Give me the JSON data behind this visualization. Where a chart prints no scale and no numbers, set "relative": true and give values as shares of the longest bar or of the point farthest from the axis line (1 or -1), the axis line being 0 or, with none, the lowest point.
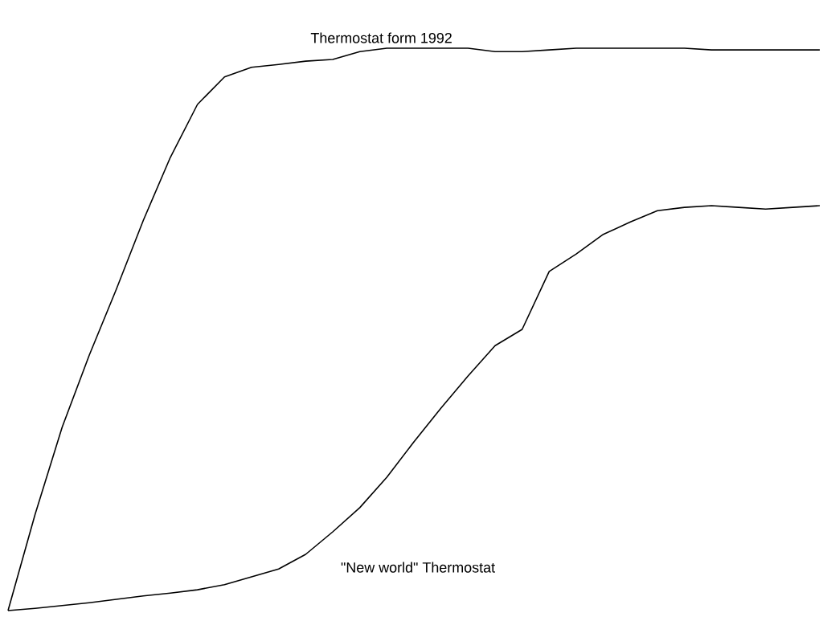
{
  "chart_data": {
    "type": "line",
    "relative": true,
    "line_style": "solid",
    "categories": [
      null,
      null,
      null,
      null,
      null,
      null,
      null,
      null,
      null,
      null,
      null,
      null,
      null,
      null,
      null,
      null,
      null,
      null,
      null,
      null,
      null,
      null,
      null,
      null,
      null,
      null,
      null,
      null,
      null,
      null,
      null
    ],
    "series": [
      {
        "name": "Thermostat form 1992",
        "color": "#000000",
        "values": [
          0,
          0.171,
          0.326,
          0.454,
          0.571,
          0.694,
          0.806,
          0.9,
          0.949,
          0.966,
          0.971,
          0.977,
          0.98,
          0.994,
          1,
          1,
          1,
          1,
          0.994,
          0.994,
          0.997,
          1,
          1,
          1,
          1,
          1,
          0.997,
          0.997,
          0.997,
          0.997,
          0.997
        ]
      },
      {
        "name": "\"New world\" Thermostat",
        "color": "#000000",
        "values": [
          0,
          0.004,
          0.009,
          0.014,
          0.02,
          0.026,
          0.031,
          0.037,
          0.046,
          0.06,
          0.074,
          0.1,
          0.14,
          0.183,
          0.237,
          0.3,
          0.36,
          0.417,
          0.471,
          0.5,
          0.603,
          0.634,
          0.669,
          0.691,
          0.711,
          0.717,
          0.72,
          0.717,
          0.714,
          0.717,
          0.72
        ]
      }
    ]
  }
}
